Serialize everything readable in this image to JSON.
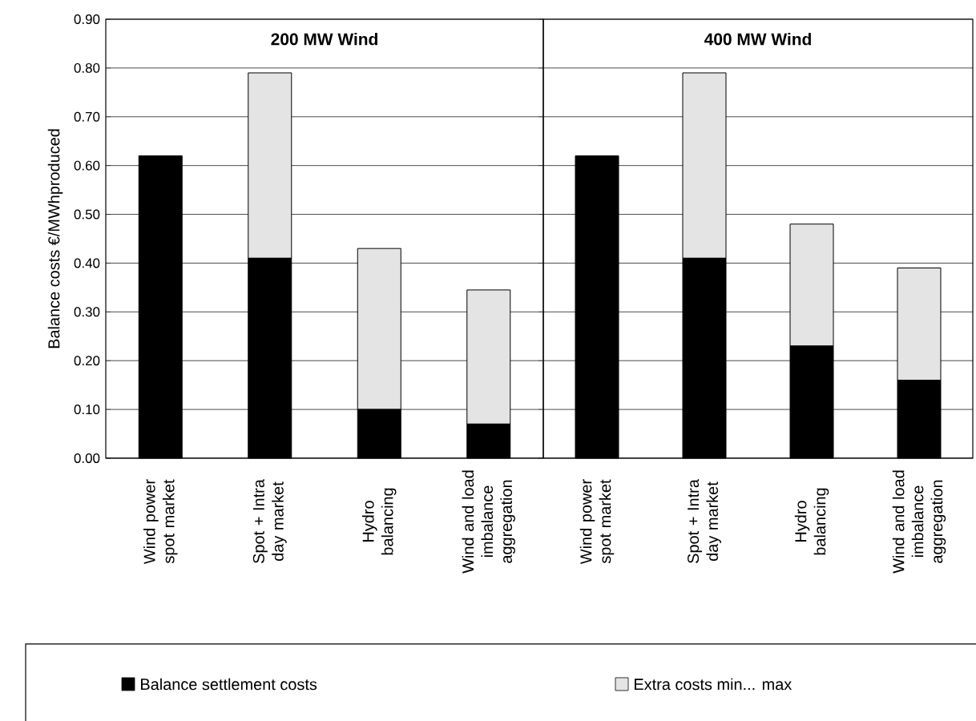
{
  "chart_data": [
    {
      "type": "bar",
      "stacked": true,
      "title": "200 MW Wind",
      "ylabel": "Balance costs €/MWhproduced",
      "categories": [
        "Wind power spot market",
        "Spot + Intra day market",
        "Hydro balancing",
        "Wind and load imbalance aggregation"
      ],
      "series": [
        {
          "name": "Balance settlement costs",
          "color": "#000000",
          "values": [
            0.62,
            0.41,
            0.1,
            0.07
          ]
        },
        {
          "name": "Extra costs min... max",
          "color": "#e4e4e4",
          "values": [
            null,
            0.38,
            0.33,
            0.275
          ]
        }
      ],
      "ylim": [
        0,
        0.9
      ],
      "yticks": [
        {
          "value": 0,
          "label": "0.00"
        },
        {
          "value": 0.1,
          "label": "0.10"
        },
        {
          "value": 0.2,
          "label": "0.20"
        },
        {
          "value": 0.3,
          "label": "0.30"
        },
        {
          "value": 0.4,
          "label": "0.40"
        },
        {
          "value": 0.5,
          "label": "0.50"
        },
        {
          "value": 0.6,
          "label": "0.60"
        },
        {
          "value": 0.7,
          "label": "0.70"
        },
        {
          "value": 0.8,
          "label": "0.80"
        },
        {
          "value": 0.9,
          "label": "0.90"
        }
      ],
      "grid": "y",
      "legend": "bottom"
    },
    {
      "type": "bar",
      "stacked": true,
      "title": "400 MW Wind",
      "categories": [
        "Wind power spot market",
        "Spot + Intra day market",
        "Hydro balancing",
        "Wind and load imbalance aggregation"
      ],
      "series": [
        {
          "color": "#000000",
          "values": [
            0.62,
            0.41,
            0.23,
            0.16
          ]
        },
        {
          "color": "#e4e4e4",
          "values": [
            null,
            0.38,
            0.25,
            0.23
          ]
        }
      ],
      "ylim": [
        0,
        0.9
      ],
      "yticks": [
        0,
        0.1,
        0.2,
        0.3,
        0.4,
        0.5,
        0.6,
        0.7,
        0.8,
        0.9
      ],
      "grid": "y",
      "tick_labels": "x"
    }
  ]
}
